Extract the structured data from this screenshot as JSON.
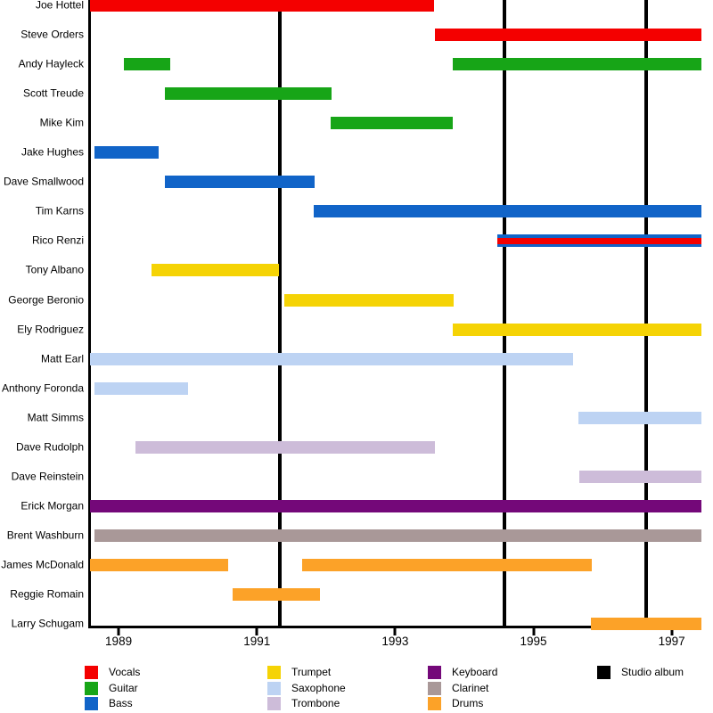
{
  "chart_data": {
    "type": "gantt",
    "title": "",
    "xlabel": "",
    "ylabel": "",
    "x_range": [
      1988.58,
      1997.43
    ],
    "x_ticks": [
      "1989",
      "1991",
      "1993",
      "1995",
      "1997"
    ],
    "x_tick_years": [
      1989,
      1991,
      1993,
      1995,
      1997
    ],
    "grid": false,
    "legend_position": "bottom",
    "album_lines": [
      1991.33,
      1994.58,
      1996.63
    ],
    "role_colors": {
      "Vocals": "#f40000",
      "Guitar": "#17a517",
      "Bass": "#1164c8",
      "Trumpet": "#f5d305",
      "Saxophone": "#bdd3f3",
      "Trombone": "#cdbcd9",
      "Keyboard": "#740879",
      "Clarinet": "#a99898",
      "Drums": "#fca228",
      "Studio album": "#000000"
    },
    "members": [
      {
        "name": "Joe Hottel",
        "roles": [
          "Vocals"
        ],
        "spans": [
          [
            1988.58,
            1993.56
          ]
        ]
      },
      {
        "name": "Steve Orders",
        "roles": [
          "Vocals"
        ],
        "spans": [
          [
            1993.57,
            1997.43
          ]
        ]
      },
      {
        "name": "Andy Hayleck",
        "roles": [
          "Guitar"
        ],
        "spans": [
          [
            1989.08,
            1989.75
          ],
          [
            1993.83,
            1997.43
          ]
        ]
      },
      {
        "name": "Scott Treude",
        "roles": [
          "Guitar"
        ],
        "spans": [
          [
            1989.67,
            1992.08
          ]
        ]
      },
      {
        "name": "Mike Kim",
        "roles": [
          "Guitar"
        ],
        "spans": [
          [
            1992.07,
            1993.83
          ]
        ]
      },
      {
        "name": "Jake Hughes",
        "roles": [
          "Bass"
        ],
        "spans": [
          [
            1988.65,
            1989.58
          ]
        ]
      },
      {
        "name": "Dave Smallwood",
        "roles": [
          "Bass"
        ],
        "spans": [
          [
            1989.67,
            1991.84
          ]
        ]
      },
      {
        "name": "Tim Karns",
        "roles": [
          "Bass"
        ],
        "spans": [
          [
            1991.82,
            1997.43
          ]
        ]
      },
      {
        "name": "Rico Renzi",
        "roles": [
          "Bass",
          "Vocals"
        ],
        "spans": [
          [
            1994.48,
            1997.43
          ]
        ]
      },
      {
        "name": "Tony Albano",
        "roles": [
          "Trumpet"
        ],
        "spans": [
          [
            1989.48,
            1991.32
          ]
        ]
      },
      {
        "name": "George Beronio",
        "roles": [
          "Trumpet"
        ],
        "spans": [
          [
            1991.4,
            1993.84
          ]
        ]
      },
      {
        "name": "Ely Rodriguez",
        "roles": [
          "Trumpet"
        ],
        "spans": [
          [
            1993.83,
            1997.43
          ]
        ]
      },
      {
        "name": "Matt Earl",
        "roles": [
          "Saxophone"
        ],
        "spans": [
          [
            1988.58,
            1995.58
          ]
        ]
      },
      {
        "name": "Anthony Foronda",
        "roles": [
          "Saxophone"
        ],
        "spans": [
          [
            1988.65,
            1990.0
          ]
        ]
      },
      {
        "name": "Matt Simms",
        "roles": [
          "Saxophone"
        ],
        "spans": [
          [
            1995.65,
            1997.43
          ]
        ]
      },
      {
        "name": "Dave Rudolph",
        "roles": [
          "Trombone"
        ],
        "spans": [
          [
            1989.24,
            1993.58
          ]
        ]
      },
      {
        "name": "Dave Reinstein",
        "roles": [
          "Trombone"
        ],
        "spans": [
          [
            1995.66,
            1997.43
          ]
        ]
      },
      {
        "name": "Erick Morgan",
        "roles": [
          "Keyboard"
        ],
        "spans": [
          [
            1988.58,
            1997.43
          ]
        ]
      },
      {
        "name": "Brent Washburn",
        "roles": [
          "Clarinet"
        ],
        "spans": [
          [
            1988.65,
            1997.43
          ]
        ]
      },
      {
        "name": "James McDonald",
        "roles": [
          "Drums"
        ],
        "spans": [
          [
            1988.58,
            1990.58
          ],
          [
            1991.66,
            1995.84
          ]
        ]
      },
      {
        "name": "Reggie Romain",
        "roles": [
          "Drums"
        ],
        "spans": [
          [
            1990.65,
            1991.91
          ]
        ]
      },
      {
        "name": "Larry Schugam",
        "roles": [
          "Drums"
        ],
        "spans": [
          [
            1995.83,
            1997.43
          ]
        ]
      }
    ]
  },
  "legend": {
    "columns": [
      [
        "Vocals",
        "Guitar",
        "Bass"
      ],
      [
        "Trumpet",
        "Saxophone",
        "Trombone"
      ],
      [
        "Keyboard",
        "Clarinet",
        "Drums"
      ],
      [
        "Studio album"
      ]
    ]
  }
}
